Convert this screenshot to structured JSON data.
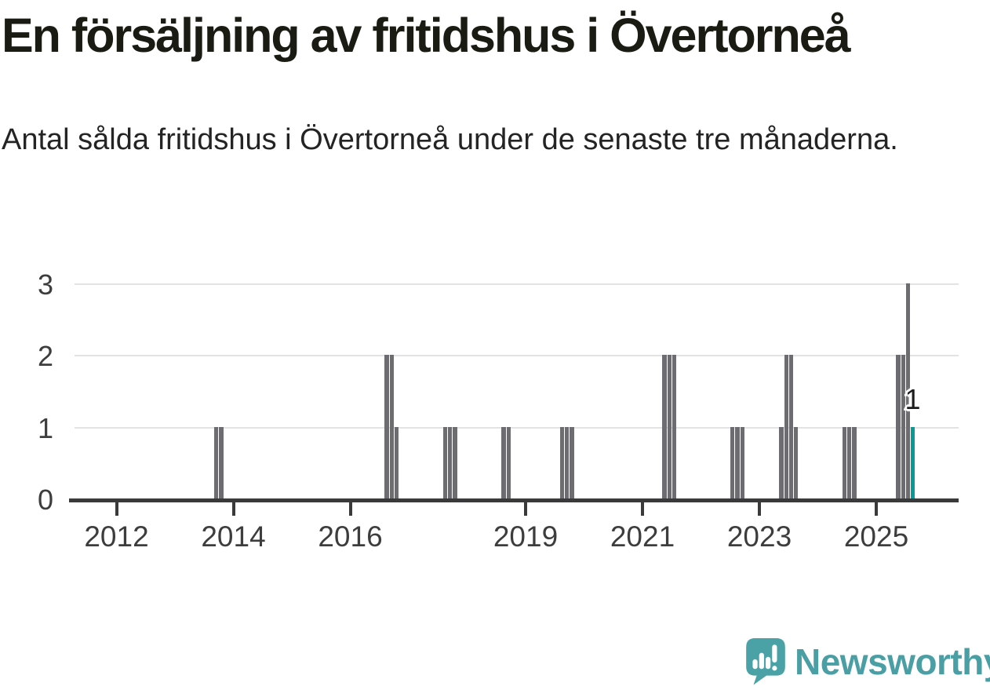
{
  "header": {
    "title": "En försäljning av fritidshus i Övertorneå",
    "subtitle": "Antal sålda fritidshus i Övertorneå under de senaste tre månaderna."
  },
  "chart_data": {
    "type": "bar",
    "title": "En försäljning av fritidshus i Övertorneå",
    "xlabel": "",
    "ylabel": "",
    "ylim": [
      0,
      3
    ],
    "y_ticks": [
      0,
      1,
      2,
      3
    ],
    "x_ticks_years": [
      2012,
      2014,
      2016,
      2019,
      2021,
      2023,
      2025
    ],
    "grid": "horizontal",
    "legend": "none",
    "bar_color": "#6c6c71",
    "highlight_color": "#089a96",
    "points": [
      {
        "month": "2013-09",
        "value": 1
      },
      {
        "month": "2013-10",
        "value": 1
      },
      {
        "month": "2016-08",
        "value": 2
      },
      {
        "month": "2016-09",
        "value": 2
      },
      {
        "month": "2016-10",
        "value": 1
      },
      {
        "month": "2017-08",
        "value": 1
      },
      {
        "month": "2017-09",
        "value": 1
      },
      {
        "month": "2017-10",
        "value": 1
      },
      {
        "month": "2018-08",
        "value": 1
      },
      {
        "month": "2018-09",
        "value": 1
      },
      {
        "month": "2019-08",
        "value": 1
      },
      {
        "month": "2019-09",
        "value": 1
      },
      {
        "month": "2019-10",
        "value": 1
      },
      {
        "month": "2021-05",
        "value": 2
      },
      {
        "month": "2021-06",
        "value": 2
      },
      {
        "month": "2021-07",
        "value": 2
      },
      {
        "month": "2022-07",
        "value": 1
      },
      {
        "month": "2022-08",
        "value": 1
      },
      {
        "month": "2022-09",
        "value": 1
      },
      {
        "month": "2023-05",
        "value": 1
      },
      {
        "month": "2023-06",
        "value": 2
      },
      {
        "month": "2023-07",
        "value": 2
      },
      {
        "month": "2023-08",
        "value": 1
      },
      {
        "month": "2024-06",
        "value": 1
      },
      {
        "month": "2024-07",
        "value": 1
      },
      {
        "month": "2024-08",
        "value": 1
      },
      {
        "month": "2025-05",
        "value": 2
      },
      {
        "month": "2025-06",
        "value": 2
      },
      {
        "month": "2025-07",
        "value": 3
      },
      {
        "month": "2025-08",
        "value": 1,
        "highlight": true,
        "label": "1"
      }
    ]
  },
  "footer": {
    "logo_text": "Newsworthy",
    "logo_color": "#4ba2a6"
  },
  "colors": {
    "background": "#ffffff",
    "title_text": "#1a1c13",
    "subtitle_text": "#242424",
    "axis": "#3a3a3a",
    "axis_text": "#3d3d3d",
    "gridline": "#e3e3e3",
    "bar": "#6c6c71",
    "highlight": "#089a96",
    "annotation_text": "#1c1c1c"
  }
}
